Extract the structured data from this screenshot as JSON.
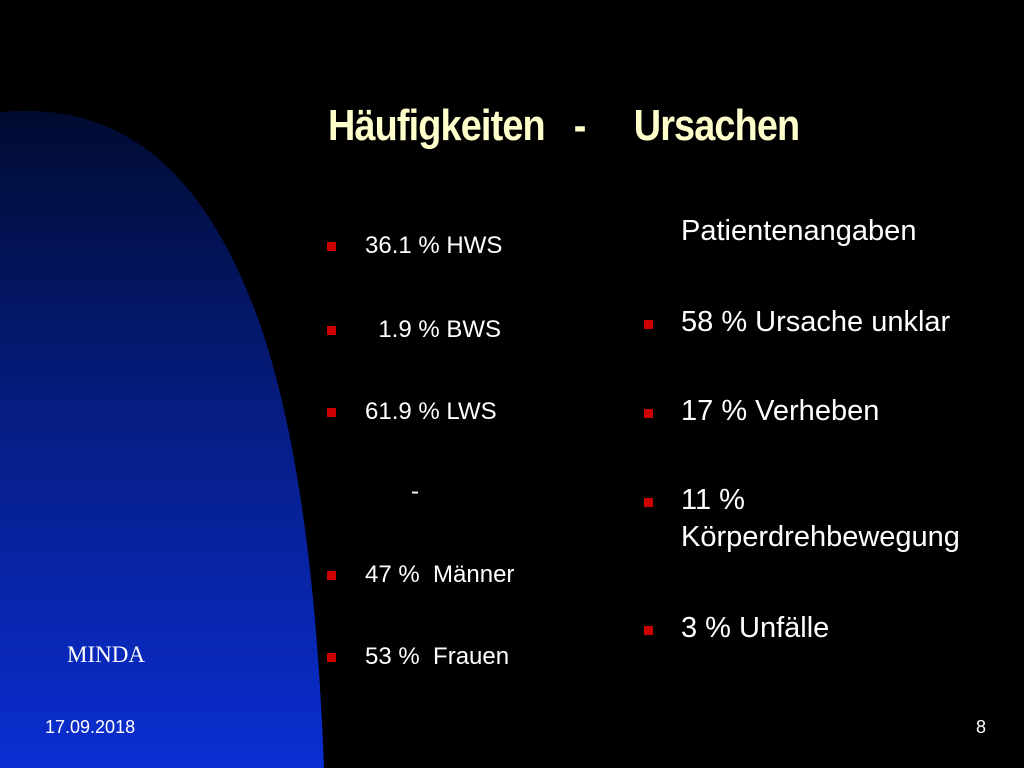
{
  "slide": {
    "title": "Häufigkeiten   -     Ursachen",
    "colors": {
      "background": "#000000",
      "title": "#FFFFCC",
      "text": "#FFFFFF",
      "bullet": "#CC0000",
      "shape_gradient_top": "#000B30",
      "shape_gradient_bottom": "#0A2ED2"
    },
    "left_list": {
      "items": [
        "36.1 % HWS",
        "  1.9 % BWS",
        "61.9 % LWS",
        "-",
        "47 %  Männer",
        "53 %  Frauen"
      ]
    },
    "right_list": {
      "heading": "Patientenangaben",
      "items": [
        "58 % Ursache unklar",
        "17 % Verheben",
        "11 %",
        "Körperdrehbewegung",
        "3 % Unfälle"
      ]
    },
    "brand_label": "MINDA",
    "footer": {
      "date": "17.09.2018",
      "page_number": "8"
    }
  }
}
